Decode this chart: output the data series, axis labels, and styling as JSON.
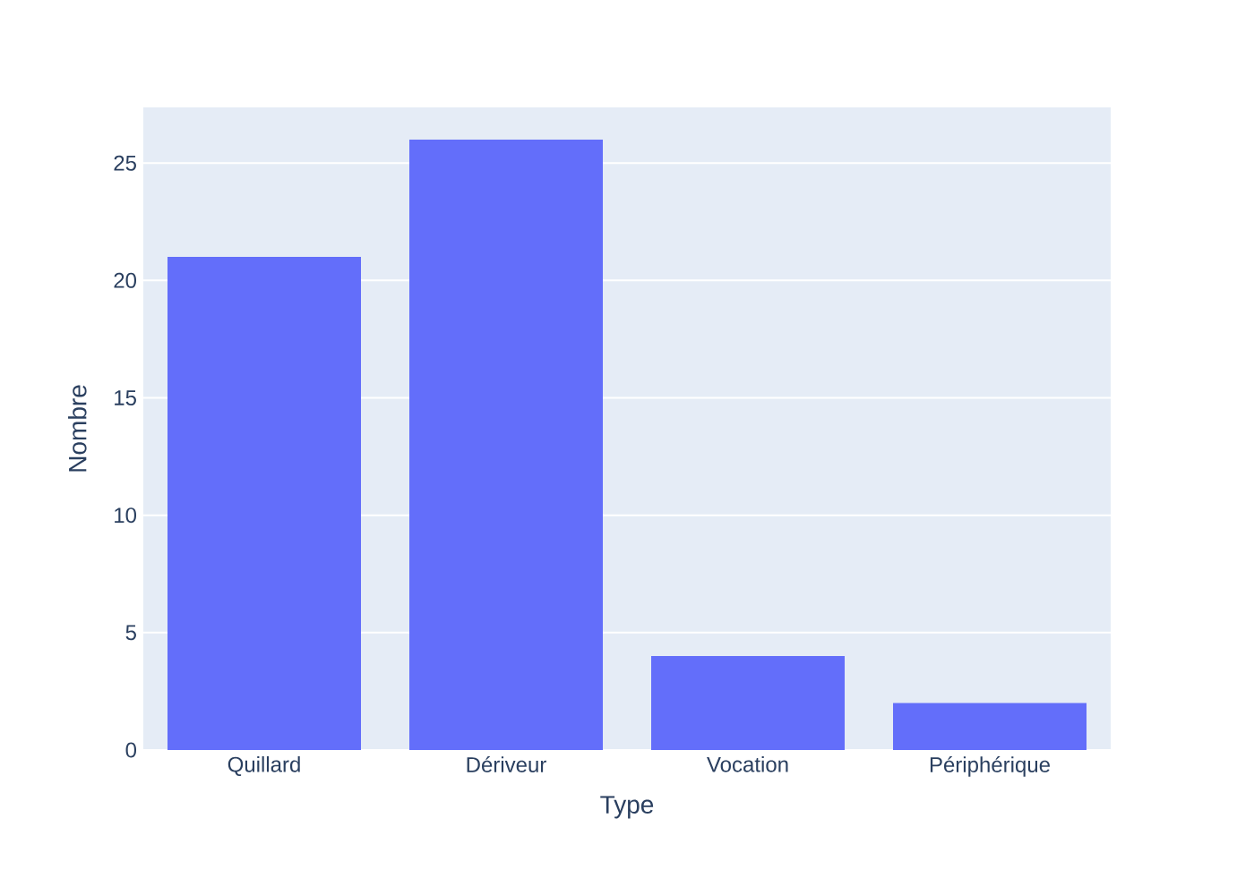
{
  "chart_data": {
    "type": "bar",
    "xlabel": "Type",
    "ylabel": "Nombre",
    "categories": [
      "Quillard",
      "Dériveur",
      "Vocation",
      "Périphérique"
    ],
    "values": [
      21,
      26,
      4,
      2
    ],
    "color": "#636efa",
    "ylim": [
      0,
      27.37
    ],
    "yticks": [
      0,
      5,
      10,
      15,
      20,
      25
    ],
    "grid": "y"
  }
}
